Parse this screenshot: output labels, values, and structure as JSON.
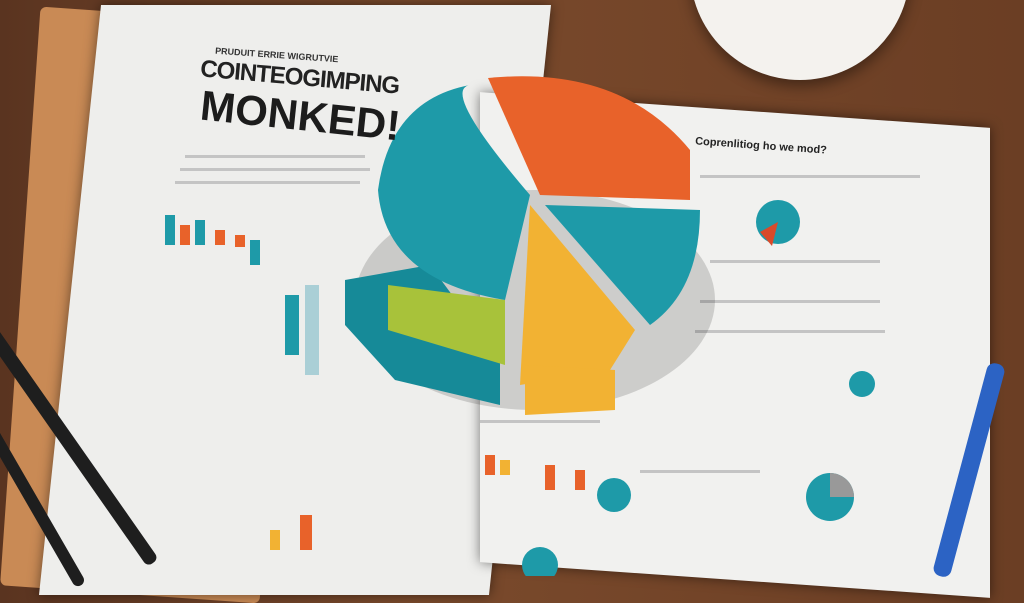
{
  "magazine": {
    "kicker": "PRUDUIT ERRIE WIGRUTVIE",
    "headline_line1": "COINTEOGIMPING",
    "headline_line2": "MONKED!",
    "right_heading": "Coprenlitiog ho we mod?"
  },
  "colors": {
    "teal": "#1e9aa8",
    "orange": "#e8622a",
    "yellow": "#f2b233",
    "lime": "#a8c23a",
    "wood": "#6b3e24",
    "paper": "#eeeeec"
  }
}
